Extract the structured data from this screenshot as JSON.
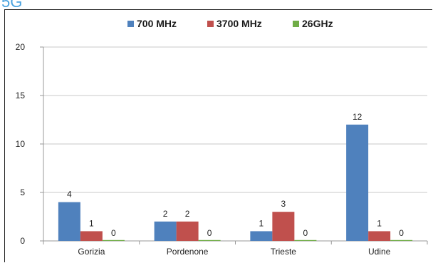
{
  "page": {
    "title": "5G"
  },
  "colors": {
    "series_700": "#4f81bd",
    "series_3700": "#c0504d",
    "series_26": "#70ad47",
    "gridline": "#c8c8c8",
    "axis": "#999999"
  },
  "chart_data": {
    "type": "bar",
    "title": "",
    "xlabel": "",
    "ylabel": "",
    "categories": [
      "Gorizia",
      "Pordenone",
      "Trieste",
      "Udine"
    ],
    "series": [
      {
        "name": "700 MHz",
        "values": [
          4,
          2,
          1,
          12
        ]
      },
      {
        "name": "3700 MHz",
        "values": [
          1,
          2,
          3,
          1
        ]
      },
      {
        "name": "26GHz",
        "values": [
          0,
          0,
          0,
          0
        ]
      }
    ],
    "ylim": [
      0,
      20
    ],
    "yticks": [
      0,
      5,
      10,
      15,
      20
    ],
    "grid": true,
    "legend_position": "top",
    "data_labels": true
  }
}
